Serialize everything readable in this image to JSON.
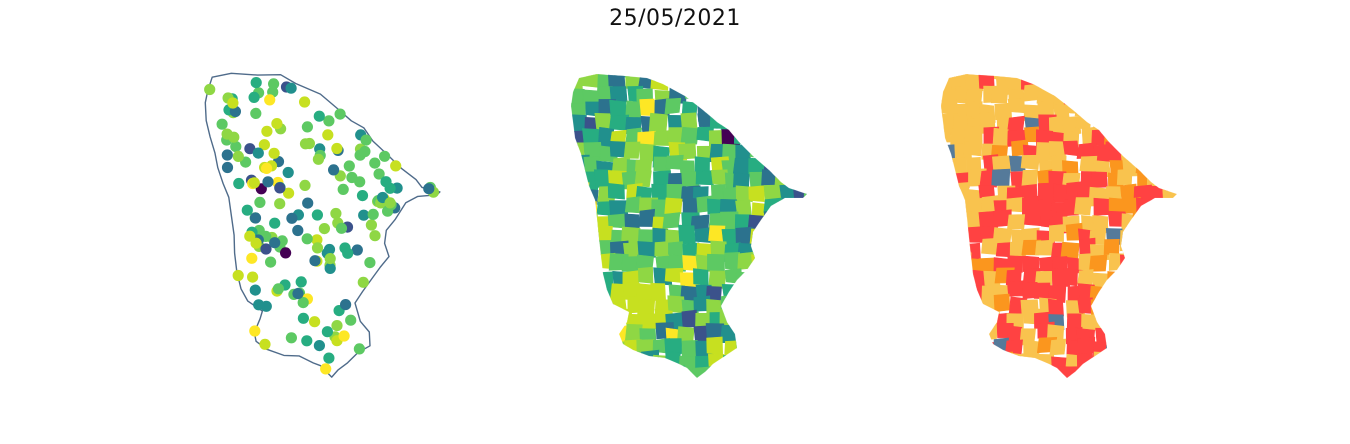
{
  "figure": {
    "title": "25/05/2021"
  },
  "colors": {
    "outline": "#4f6b8a",
    "viridis": [
      "#440154",
      "#3b528b",
      "#2c728e",
      "#21908d",
      "#27ad81",
      "#5dc963",
      "#8fd744",
      "#c7e020",
      "#fde725"
    ],
    "classes": [
      "#f9c34e",
      "#ff4242",
      "#fb961e",
      "#557a9a"
    ]
  },
  "chart_data": [
    {
      "type": "scatter",
      "panel": "point-map",
      "colormap": "viridis"
    },
    {
      "type": "choropleth",
      "panel": "viridis-choropleth",
      "colormap": "viridis"
    },
    {
      "type": "choropleth",
      "panel": "category-choropleth",
      "categories_colors": [
        "#f9c34e",
        "#ff4242",
        "#fb961e",
        "#557a9a"
      ]
    }
  ]
}
